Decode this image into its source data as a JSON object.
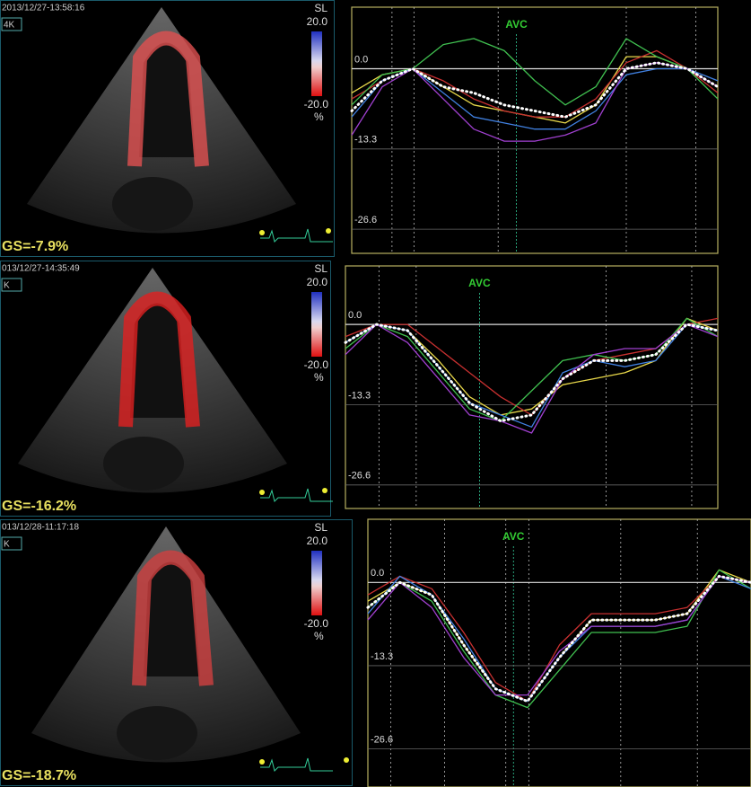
{
  "panels": [
    {
      "timestamp": "2013/12/27-13:58:16",
      "mode": "4K",
      "scale_unit": "SL",
      "scale_max": "20.0",
      "scale_min": "-20.0",
      "percent": "%",
      "gs": "GS=-7.9%"
    },
    {
      "timestamp": "013/12/27-14:35:49",
      "mode": "K",
      "scale_unit": "SL",
      "scale_max": "20.0",
      "scale_min": "-20.0",
      "percent": "%",
      "gs": "GS=-16.2%"
    },
    {
      "timestamp": "013/12/28-11:17:18",
      "mode": "K",
      "scale_unit": "SL",
      "scale_max": "20.0",
      "scale_min": "-20.0",
      "percent": "%",
      "gs": "GS=-18.7%"
    }
  ],
  "chart_data": [
    {
      "type": "line",
      "annotation": "AVC",
      "ylim": [
        -30.6,
        10.2
      ],
      "yticks": [
        {
          "value": 0,
          "label": "0.0"
        },
        -13.3,
        -26.6
      ],
      "series": [
        {
          "color": "#e8d84a",
          "values": [
            -4,
            -1,
            0,
            -3,
            -6,
            -7,
            -8,
            -9,
            -6,
            2,
            2,
            0,
            -3
          ]
        },
        {
          "color": "#c83030",
          "values": [
            -5,
            -2,
            0,
            -2,
            -5,
            -7,
            -8,
            -8,
            -5,
            1,
            3,
            0,
            -4
          ]
        },
        {
          "color": "#40c050",
          "values": [
            -6,
            -1,
            0,
            4,
            5,
            3,
            -2,
            -6,
            -3,
            5,
            2,
            0,
            -5
          ]
        },
        {
          "color": "#4080e0",
          "values": [
            -8,
            -2,
            0,
            -4,
            -8,
            -9,
            -10,
            -10,
            -7,
            -1,
            0,
            0,
            -2
          ]
        },
        {
          "color": "#a040d0",
          "values": [
            -11,
            -3,
            0,
            -5,
            -10,
            -12,
            -12,
            -11,
            -9,
            0,
            1,
            0,
            -3
          ]
        },
        {
          "color": "#ffffff",
          "dotted": true,
          "values": [
            -7,
            -2,
            0,
            -3,
            -4,
            -6,
            -7,
            -8,
            -6,
            0,
            1,
            0,
            -3
          ]
        }
      ]
    },
    {
      "type": "line",
      "annotation": "AVC",
      "ylim": [
        -30.5,
        9.7
      ],
      "yticks": [
        {
          "value": 0,
          "label": "0.0"
        },
        -13.3,
        -26.6
      ],
      "series": [
        {
          "color": "#e8d84a",
          "values": [
            -3,
            0,
            -1,
            -6,
            -12,
            -15,
            -14,
            -10,
            -9,
            -8,
            -6,
            1,
            -1
          ]
        },
        {
          "color": "#c83030",
          "values": [
            -2,
            0,
            0,
            -4,
            -8,
            -12,
            -15,
            -9,
            -6,
            -5,
            -4,
            0,
            1
          ]
        },
        {
          "color": "#40c050",
          "values": [
            -4,
            0,
            -2,
            -8,
            -14,
            -16,
            -11,
            -6,
            -5,
            -6,
            -5,
            1,
            -2
          ]
        },
        {
          "color": "#4080e0",
          "values": [
            -3,
            0,
            -1,
            -7,
            -13,
            -15,
            -17,
            -8,
            -6,
            -7,
            -6,
            0,
            -1
          ]
        },
        {
          "color": "#a040d0",
          "values": [
            -5,
            0,
            -3,
            -9,
            -15,
            -16,
            -18,
            -9,
            -5,
            -4,
            -4,
            0,
            -2
          ]
        },
        {
          "color": "#ffffff",
          "dotted": true,
          "values": [
            -3,
            0,
            -1,
            -7,
            -13,
            -16,
            -15,
            -9,
            -6,
            -6,
            -5,
            0,
            -1
          ]
        }
      ]
    },
    {
      "type": "line",
      "annotation": "AVC",
      "ylim": [
        -32.7,
        10.1
      ],
      "yticks": [
        {
          "value": 0,
          "label": "0.0"
        },
        -13.3,
        -26.6
      ],
      "series": [
        {
          "color": "#e8d84a",
          "values": [
            -3,
            0,
            -2,
            -10,
            -17,
            -19,
            -12,
            -6,
            -6,
            -6,
            -5,
            2,
            0
          ]
        },
        {
          "color": "#c83030",
          "values": [
            -2,
            1,
            -1,
            -8,
            -16,
            -19,
            -10,
            -5,
            -5,
            -5,
            -4,
            1,
            0
          ]
        },
        {
          "color": "#40c050",
          "values": [
            -4,
            0,
            -3,
            -11,
            -18,
            -20,
            -14,
            -8,
            -8,
            -8,
            -7,
            2,
            -1
          ]
        },
        {
          "color": "#4080e0",
          "values": [
            -5,
            1,
            -2,
            -9,
            -17,
            -19,
            -12,
            -7,
            -7,
            -7,
            -6,
            1,
            -1
          ]
        },
        {
          "color": "#a040d0",
          "values": [
            -6,
            0,
            -4,
            -12,
            -18,
            -18,
            -11,
            -7,
            -7,
            -7,
            -6,
            1,
            0
          ]
        },
        {
          "color": "#ffffff",
          "dotted": true,
          "values": [
            -4,
            0,
            -2,
            -10,
            -17,
            -19,
            -12,
            -6,
            -6,
            -6,
            -5,
            1,
            0
          ]
        }
      ]
    }
  ]
}
